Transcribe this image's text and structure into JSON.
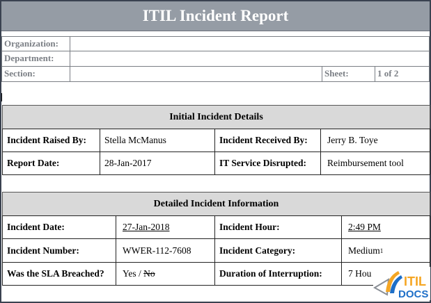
{
  "title": "ITIL Incident Report",
  "header": {
    "organization_label": "Organization:",
    "organization_value": "",
    "department_label": "Department:",
    "department_value": "",
    "section_label": "Section:",
    "section_value": "",
    "sheet_label": "Sheet:",
    "sheet_value": "1 of 2"
  },
  "initial": {
    "heading": "Initial Incident Details",
    "raised_by_label": "Incident Raised By:",
    "raised_by": "Stella McManus",
    "received_by_label": "Incident Received By:",
    "received_by": "Jerry B. Toye",
    "report_date_label": "Report Date:",
    "report_date": "28-Jan-2017",
    "service_label": "IT Service Disrupted:",
    "service": "Reimbursement tool"
  },
  "detailed": {
    "heading": "Detailed Incident Information",
    "date_label": "Incident Date:",
    "date": "27-Jan-2018",
    "hour_label": "Incident Hour:",
    "hour": "2:49 PM",
    "number_label": "Incident Number:",
    "number": "WWER-112-7608",
    "category_label": "Incident Category:",
    "category": "Medium",
    "category_note": "1",
    "sla_label": "Was the SLA Breached?",
    "sla_yes": "Yes / ",
    "sla_no": "No",
    "duration_label": "Duration of Interruption:",
    "duration": "7 Hou"
  },
  "logo": {
    "text_top": "ITIL",
    "text_bottom": "DOCS",
    "colors": {
      "orange": "#f5a623",
      "blue": "#1e6fc8",
      "gray": "#8a8f96"
    }
  }
}
